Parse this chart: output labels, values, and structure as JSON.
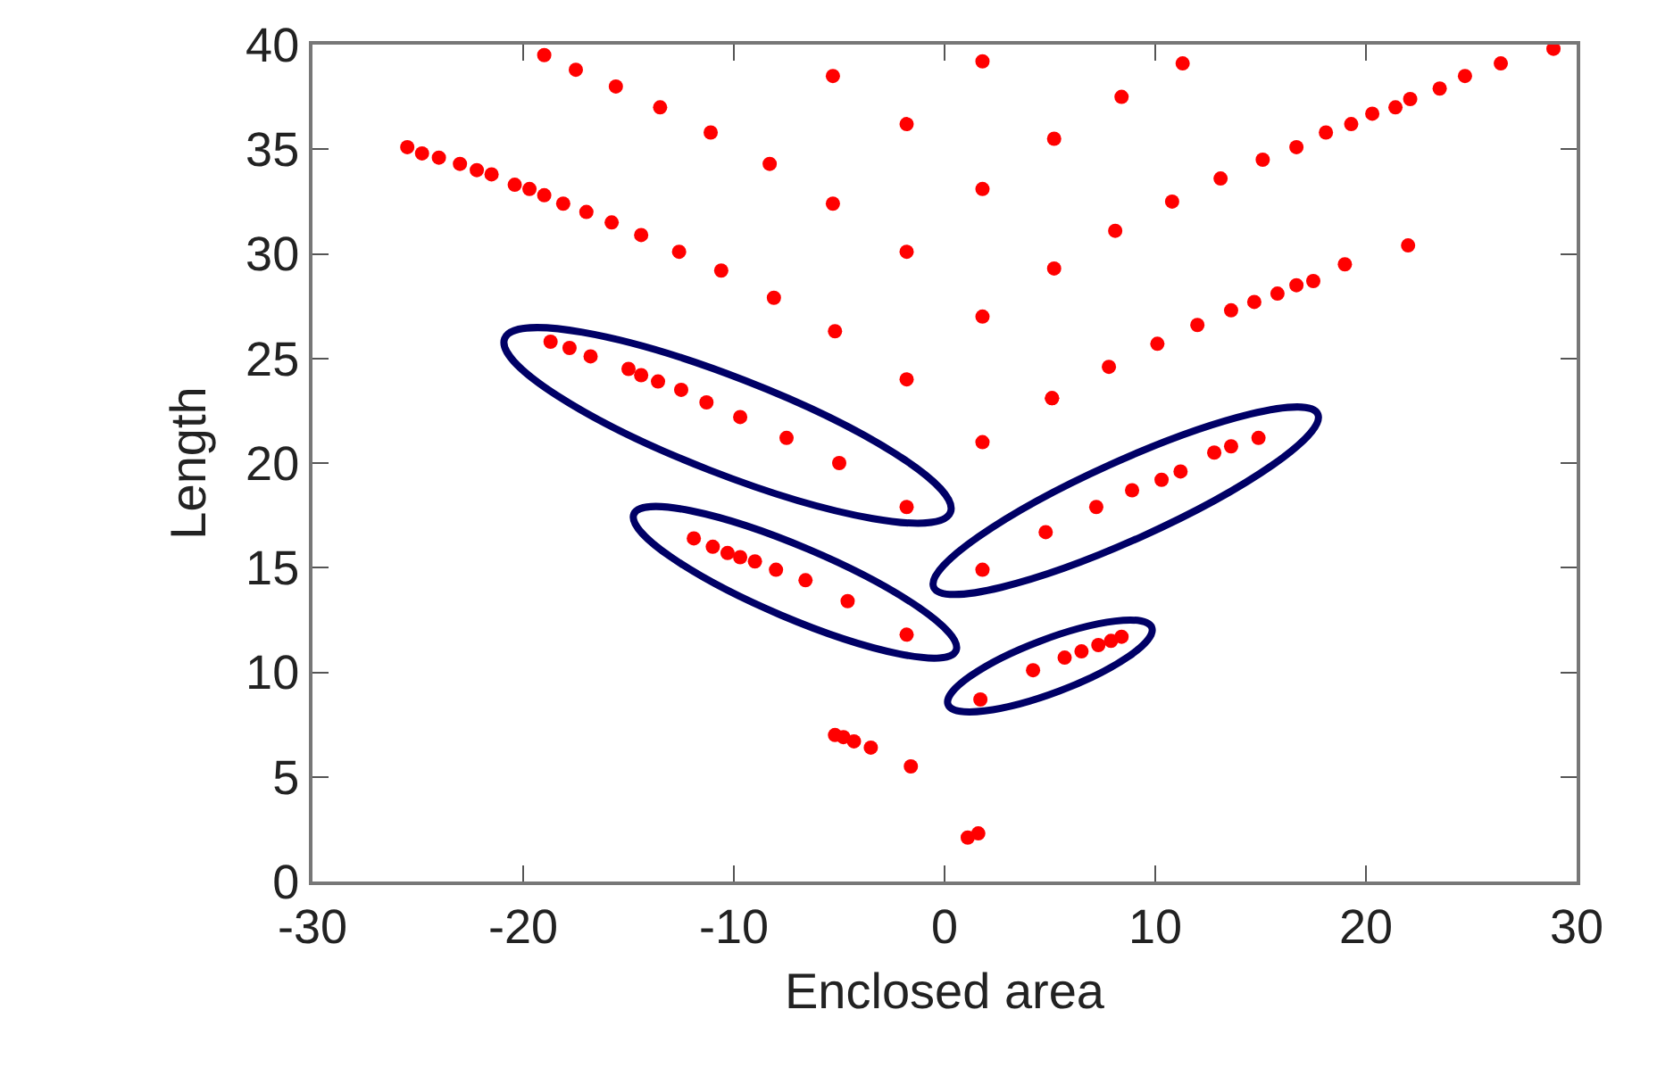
{
  "chart_data": {
    "type": "scatter",
    "xlabel": "Enclosed area",
    "ylabel": "Length",
    "xlim": [
      -30,
      30
    ],
    "ylim": [
      0,
      40
    ],
    "xticks": [
      -30,
      -20,
      -10,
      0,
      10,
      20,
      30
    ],
    "yticks": [
      0,
      5,
      10,
      15,
      20,
      25,
      30,
      35,
      40
    ],
    "grid": false,
    "marker": "circle",
    "series": [
      {
        "color": "#ff0000",
        "x": [
          -25.5,
          -24.8,
          -24,
          -23,
          -22.2,
          -21.5,
          -20.4,
          -19.7,
          -19.0,
          -18.1,
          -17.0,
          -15.8,
          -14.4,
          -12.6,
          -10.6,
          -8.1,
          -5.2,
          -1.8,
          -19.0,
          -17.5,
          -15.6,
          -13.5,
          -11.1,
          -8.3,
          -5.3,
          -1.8,
          -5.3,
          -1.8,
          -18.7,
          -17.8,
          -16.8,
          -15.0,
          -14.4,
          -13.6,
          -12.5,
          -11.3,
          -9.7,
          -7.5,
          -5.0,
          -1.8,
          -11.9,
          -11.0,
          -10.3,
          -9.7,
          -9.0,
          -8.0,
          -6.6,
          -4.6,
          -1.8,
          -5.2,
          -4.8,
          -4.3,
          -3.5,
          -1.6,
          1.1,
          1.6,
          1.8,
          1.8,
          1.8,
          1.8,
          1.8,
          1.7,
          5.2,
          5.1,
          4.8,
          5.2,
          8.4,
          11.3,
          8.1,
          10.8,
          13.1,
          15.1,
          16.7,
          18.1,
          19.3,
          20.3,
          21.4,
          22.1,
          23.5,
          24.7,
          26.4,
          28.9,
          7.8,
          10.1,
          12.0,
          13.6,
          14.7,
          15.8,
          16.7,
          17.5,
          19.0,
          22.0,
          5.1,
          7.2,
          8.9,
          10.3,
          11.2,
          12.8,
          13.6,
          14.9,
          4.2,
          5.7,
          6.5,
          7.3,
          7.9,
          8.4
        ],
        "values": [
          35.1,
          34.8,
          34.6,
          34.3,
          34.0,
          33.8,
          33.3,
          33.1,
          32.8,
          32.4,
          32.0,
          31.5,
          30.9,
          30.1,
          29.2,
          27.9,
          26.3,
          24.0,
          39.5,
          38.8,
          38.0,
          37.0,
          35.8,
          34.3,
          32.4,
          30.1,
          38.5,
          36.2,
          25.8,
          25.5,
          25.1,
          24.5,
          24.2,
          23.9,
          23.5,
          22.9,
          22.2,
          21.2,
          20.0,
          17.9,
          16.4,
          16.0,
          15.7,
          15.5,
          15.3,
          14.9,
          14.4,
          13.4,
          11.8,
          7.0,
          6.9,
          6.7,
          6.4,
          5.5,
          2.1,
          2.3,
          39.2,
          33.1,
          27.0,
          21.0,
          14.9,
          8.7,
          29.3,
          23.1,
          16.7,
          35.5,
          37.5,
          39.1,
          31.1,
          32.5,
          33.6,
          34.5,
          35.1,
          35.8,
          36.2,
          36.7,
          37.0,
          37.4,
          37.9,
          38.5,
          39.1,
          39.8,
          24.6,
          25.7,
          26.6,
          27.3,
          27.7,
          28.1,
          28.5,
          28.7,
          29.5,
          30.4,
          23.1,
          17.9,
          18.7,
          19.2,
          19.6,
          20.5,
          20.8,
          21.2,
          10.1,
          10.7,
          11.0,
          11.3,
          11.5,
          11.7
        ]
      }
    ]
  }
}
